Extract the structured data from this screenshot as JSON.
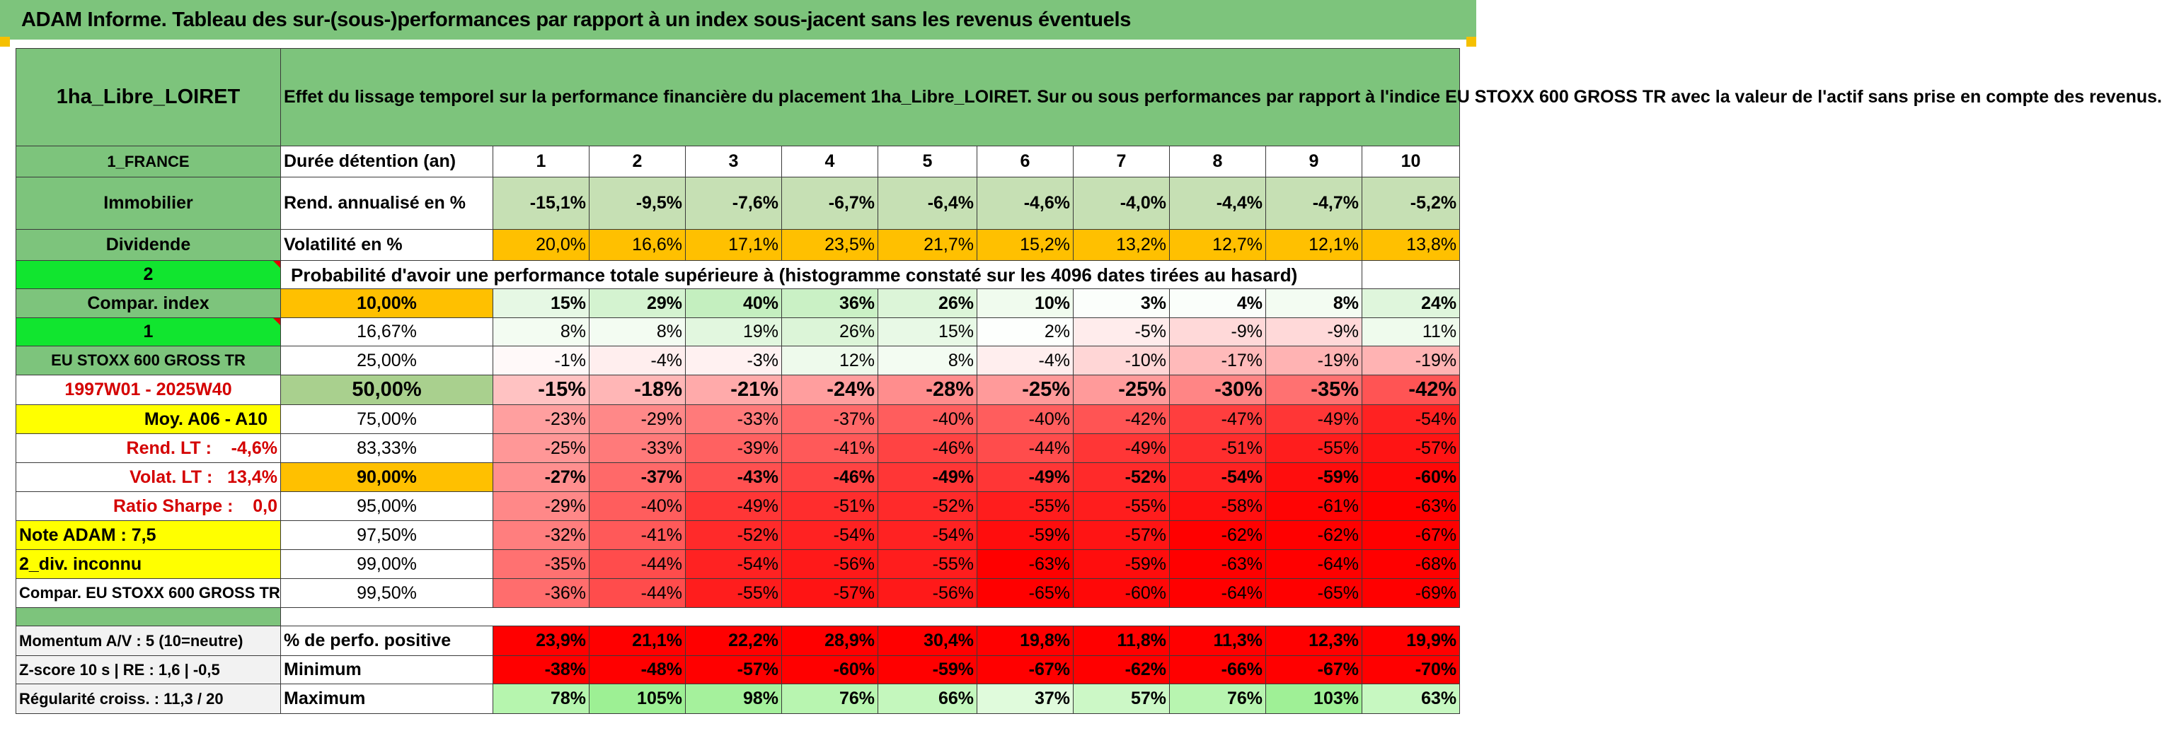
{
  "title": "ADAM Informe. Tableau des sur-(sous-)performances par rapport à un index sous-jacent sans les revenus éventuels",
  "asset_name": "1ha_Libre_LOIRET",
  "description": "Effet du lissage temporel sur la performance financière du placement 1ha_Libre_LOIRET. Sur ou sous performances par rapport à l'indice EU STOXX 600 GROSS TR avec la valeur de l'actif sans prise en compte des revenus.",
  "left": {
    "country": "1_FRANCE",
    "category": "Immobilier",
    "income_type": "Dividende",
    "flag_value_1": "2",
    "compar_index": "Compar. index",
    "flag_value_2": "1",
    "index_name": "EU STOXX 600 GROSS TR",
    "period": "1997W01 - 2025W40",
    "moy": "Moy. A06 - A10",
    "rend_lt": "Rend. LT :    -4,6%",
    "volat_lt": "Volat. LT :   13,4%",
    "sharpe": "Ratio Sharpe :    0,0",
    "note": "Note ADAM : 7,5",
    "div": "2_div. inconnu",
    "compar_full": "Compar. EU STOXX 600 GROSS TR",
    "momentum": "Momentum A/V : 5 (10=neutre)",
    "zscore": "Z-score 10 s | RE : 1,6 | -0,5",
    "regularite": "Régularité croiss. : 11,3 / 20"
  },
  "row_labels": {
    "duree": "Durée détention (an)",
    "rend": "Rend. annualisé en %",
    "volat": "Volatilité en %",
    "proba": "Probabilité d'avoir une performance totale supérieure à (histogramme constaté sur les 4096 dates tirées au hasard)",
    "positive": "% de perfo. positive",
    "minimum": "Minimum",
    "maximum": "Maximum"
  },
  "years": [
    "1",
    "2",
    "3",
    "4",
    "5",
    "6",
    "7",
    "8",
    "9",
    "10"
  ],
  "rend": [
    "-15,1%",
    "-9,5%",
    "-7,6%",
    "-6,7%",
    "-6,4%",
    "-4,6%",
    "-4,0%",
    "-4,4%",
    "-4,7%",
    "-5,2%"
  ],
  "volat": [
    "20,0%",
    "16,6%",
    "17,1%",
    "23,5%",
    "21,7%",
    "15,2%",
    "13,2%",
    "12,7%",
    "12,1%",
    "13,8%"
  ],
  "volat_colors": [
    "#ffc000",
    "#ffc000",
    "#ffc000",
    "#ffc000",
    "#ffc000",
    "#ffc000",
    "#ffc000",
    "#ffc000",
    "#ffc000",
    "#ffc000"
  ],
  "percentiles": [
    {
      "p": "10,00%",
      "bold": true,
      "vals": [
        "15%",
        "29%",
        "40%",
        "36%",
        "26%",
        "10%",
        "3%",
        "4%",
        "8%",
        "24%"
      ],
      "colors": [
        "#e6f8e4",
        "#d4f3d0",
        "#c4efbf",
        "#caf1c5",
        "#dcf5d8",
        "#f0fbee",
        "#fbfefb",
        "#fafefa",
        "#f3fcf2",
        "#dff6dc"
      ]
    },
    {
      "p": "16,67%",
      "bold": false,
      "vals": [
        "8%",
        "8%",
        "19%",
        "26%",
        "15%",
        "2%",
        "-5%",
        "-9%",
        "-9%",
        "11%"
      ],
      "colors": [
        "#f3fcf2",
        "#f3fcf2",
        "#e2f7df",
        "#dcf5d8",
        "#e8f9e6",
        "#fdfffd",
        "#ffecec",
        "#ffd9d9",
        "#ffd9d9",
        "#effbed"
      ]
    },
    {
      "p": "25,00%",
      "bold": false,
      "vals": [
        "-1%",
        "-4%",
        "-3%",
        "12%",
        "8%",
        "-4%",
        "-10%",
        "-17%",
        "-19%",
        "-19%"
      ],
      "colors": [
        "#fff9f9",
        "#ffeeee",
        "#fff1f1",
        "#eefaec",
        "#f3fcf2",
        "#ffeeee",
        "#ffd6d6",
        "#ffbaba",
        "#ffb3b3",
        "#ffb3b3"
      ]
    },
    {
      "p": "50,00%",
      "bold": true,
      "vals": [
        "-15%",
        "-18%",
        "-21%",
        "-24%",
        "-28%",
        "-25%",
        "-25%",
        "-30%",
        "-35%",
        "-42%"
      ],
      "colors": [
        "#ffc2c2",
        "#ffb6b6",
        "#ffaaaa",
        "#ff9e9e",
        "#ff8d8d",
        "#ff9a9a",
        "#ff9a9a",
        "#ff8585",
        "#ff7171",
        "#ff5454"
      ]
    },
    {
      "p": "75,00%",
      "bold": false,
      "vals": [
        "-23%",
        "-29%",
        "-33%",
        "-37%",
        "-40%",
        "-40%",
        "-42%",
        "-47%",
        "-49%",
        "-54%"
      ],
      "colors": [
        "#ff9f9f",
        "#ff8888",
        "#ff7a7a",
        "#ff6969",
        "#ff5d5d",
        "#ff5d5d",
        "#ff5454",
        "#ff3e3e",
        "#ff3636",
        "#ff2222"
      ]
    },
    {
      "p": "83,33%",
      "bold": false,
      "vals": [
        "-25%",
        "-33%",
        "-39%",
        "-41%",
        "-46%",
        "-44%",
        "-49%",
        "-51%",
        "-55%",
        "-57%"
      ],
      "colors": [
        "#ff9797",
        "#ff7a7a",
        "#ff6161",
        "#ff5959",
        "#ff4343",
        "#ff4c4c",
        "#ff3636",
        "#ff2d2d",
        "#ff1d1d",
        "#ff1414"
      ]
    },
    {
      "p": "90,00%",
      "bold": true,
      "vals": [
        "-27%",
        "-37%",
        "-43%",
        "-46%",
        "-49%",
        "-49%",
        "-52%",
        "-54%",
        "-59%",
        "-60%"
      ],
      "colors": [
        "#ff8f8f",
        "#ff6969",
        "#ff5050",
        "#ff4343",
        "#ff3636",
        "#ff3636",
        "#ff2a2a",
        "#ff2222",
        "#ff0d0d",
        "#ff0808"
      ]
    },
    {
      "p": "95,00%",
      "bold": false,
      "vals": [
        "-29%",
        "-40%",
        "-49%",
        "-51%",
        "-52%",
        "-55%",
        "-55%",
        "-58%",
        "-61%",
        "-63%"
      ],
      "colors": [
        "#ff8888",
        "#ff5d5d",
        "#ff3636",
        "#ff2d2d",
        "#ff2a2a",
        "#ff1d1d",
        "#ff1d1d",
        "#ff1010",
        "#ff0404",
        "#ff0000"
      ]
    },
    {
      "p": "97,50%",
      "bold": false,
      "vals": [
        "-32%",
        "-41%",
        "-52%",
        "-54%",
        "-54%",
        "-59%",
        "-57%",
        "-62%",
        "-62%",
        "-67%"
      ],
      "colors": [
        "#ff7e7e",
        "#ff5959",
        "#ff2a2a",
        "#ff2222",
        "#ff2222",
        "#ff0d0d",
        "#ff1414",
        "#ff0000",
        "#ff0000",
        "#ff0000"
      ]
    },
    {
      "p": "99,00%",
      "bold": false,
      "vals": [
        "-35%",
        "-44%",
        "-54%",
        "-56%",
        "-55%",
        "-63%",
        "-59%",
        "-63%",
        "-64%",
        "-68%"
      ],
      "colors": [
        "#ff7171",
        "#ff4c4c",
        "#ff2222",
        "#ff1919",
        "#ff1d1d",
        "#ff0000",
        "#ff0d0d",
        "#ff0000",
        "#ff0000",
        "#ff0000"
      ]
    },
    {
      "p": "99,50%",
      "bold": false,
      "vals": [
        "-36%",
        "-44%",
        "-55%",
        "-57%",
        "-56%",
        "-65%",
        "-60%",
        "-64%",
        "-65%",
        "-69%"
      ],
      "colors": [
        "#ff6d6d",
        "#ff4c4c",
        "#ff1d1d",
        "#ff1414",
        "#ff1919",
        "#ff0000",
        "#ff0808",
        "#ff0000",
        "#ff0000",
        "#ff0000"
      ]
    }
  ],
  "positive": [
    "23,9%",
    "21,1%",
    "22,2%",
    "28,9%",
    "30,4%",
    "19,8%",
    "11,8%",
    "11,3%",
    "12,3%",
    "19,9%"
  ],
  "minimum": [
    "-38%",
    "-48%",
    "-57%",
    "-60%",
    "-59%",
    "-67%",
    "-62%",
    "-66%",
    "-67%",
    "-70%"
  ],
  "maximum": [
    "78%",
    "105%",
    "98%",
    "76%",
    "66%",
    "37%",
    "57%",
    "76%",
    "103%",
    "63%"
  ],
  "maximum_colors": [
    "#b6f5ae",
    "#9df094",
    "#a5f19c",
    "#b8f5b0",
    "#c4f7bd",
    "#e0fbdc",
    "#ccf8c6",
    "#b8f5b0",
    "#9ff096",
    "#c7f8c1"
  ],
  "colors": {
    "banner": "#7dc47c",
    "label_green": "#7dc47c",
    "bright_green": "#11e52f",
    "orange": "#ffc000",
    "yellow": "#ffff00",
    "red": "#ff0000",
    "text_red": "#d40000"
  }
}
